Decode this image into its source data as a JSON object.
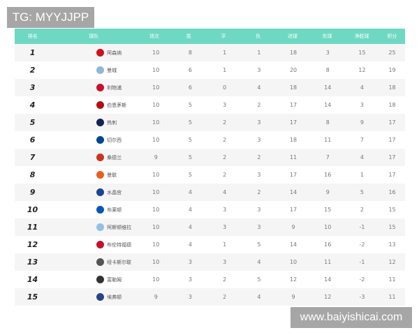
{
  "watermarks": {
    "top_left": "TG: MYYJJPP",
    "bottom_right": "www.baiyishicai.com"
  },
  "table": {
    "headers": [
      "排名",
      "球队",
      "场次",
      "胜",
      "平",
      "负",
      "进球",
      "失球",
      "净胜球",
      "积分"
    ],
    "rows": [
      {
        "rank": "1",
        "team": "阿森纳",
        "logo_color": "#d0101a",
        "played": "10",
        "won": "8",
        "drawn": "1",
        "lost": "1",
        "gf": "18",
        "ga": "3",
        "gd": "15",
        "pts": "25"
      },
      {
        "rank": "2",
        "team": "曼城",
        "logo_color": "#8fb8d8",
        "played": "10",
        "won": "6",
        "drawn": "1",
        "lost": "3",
        "gf": "20",
        "ga": "8",
        "gd": "12",
        "pts": "19"
      },
      {
        "rank": "3",
        "team": "利物浦",
        "logo_color": "#c8102e",
        "played": "10",
        "won": "6",
        "drawn": "0",
        "lost": "4",
        "gf": "18",
        "ga": "14",
        "gd": "4",
        "pts": "18"
      },
      {
        "rank": "4",
        "team": "伯恩茅斯",
        "logo_color": "#b50e12",
        "played": "10",
        "won": "5",
        "drawn": "3",
        "lost": "2",
        "gf": "17",
        "ga": "14",
        "gd": "3",
        "pts": "18"
      },
      {
        "rank": "5",
        "team": "热刺",
        "logo_color": "#132257",
        "played": "10",
        "won": "5",
        "drawn": "2",
        "lost": "3",
        "gf": "17",
        "ga": "8",
        "gd": "9",
        "pts": "17"
      },
      {
        "rank": "6",
        "team": "切尔西",
        "logo_color": "#034694",
        "played": "10",
        "won": "5",
        "drawn": "2",
        "lost": "3",
        "gf": "18",
        "ga": "11",
        "gd": "7",
        "pts": "17"
      },
      {
        "rank": "7",
        "team": "桑德兰",
        "logo_color": "#c8341f",
        "played": "9",
        "won": "5",
        "drawn": "2",
        "lost": "2",
        "gf": "11",
        "ga": "7",
        "gd": "4",
        "pts": "17"
      },
      {
        "rank": "8",
        "team": "曼联",
        "logo_color": "#e8601c",
        "played": "10",
        "won": "5",
        "drawn": "2",
        "lost": "3",
        "gf": "17",
        "ga": "16",
        "gd": "1",
        "pts": "17"
      },
      {
        "rank": "9",
        "team": "水晶宫",
        "logo_color": "#1b458f",
        "played": "10",
        "won": "4",
        "drawn": "4",
        "lost": "2",
        "gf": "14",
        "ga": "9",
        "gd": "5",
        "pts": "16"
      },
      {
        "rank": "10",
        "team": "布莱顿",
        "logo_color": "#0057b8",
        "played": "10",
        "won": "4",
        "drawn": "3",
        "lost": "3",
        "gf": "17",
        "ga": "15",
        "gd": "2",
        "pts": "15"
      },
      {
        "rank": "11",
        "team": "阿斯顿维拉",
        "logo_color": "#95bfe5",
        "played": "10",
        "won": "4",
        "drawn": "3",
        "lost": "3",
        "gf": "9",
        "ga": "10",
        "gd": "-1",
        "pts": "15"
      },
      {
        "rank": "12",
        "team": "布伦特福德",
        "logo_color": "#c8102e",
        "played": "10",
        "won": "4",
        "drawn": "1",
        "lost": "5",
        "gf": "14",
        "ga": "16",
        "gd": "-2",
        "pts": "13"
      },
      {
        "rank": "13",
        "team": "纽卡斯尔联",
        "logo_color": "#555555",
        "played": "10",
        "won": "3",
        "drawn": "3",
        "lost": "4",
        "gf": "10",
        "ga": "11",
        "gd": "-1",
        "pts": "12"
      },
      {
        "rank": "14",
        "team": "富勒姆",
        "logo_color": "#333333",
        "played": "10",
        "won": "3",
        "drawn": "2",
        "lost": "5",
        "gf": "12",
        "ga": "14",
        "gd": "-2",
        "pts": "11"
      },
      {
        "rank": "15",
        "team": "埃弗顿",
        "logo_color": "#274488",
        "played": "9",
        "won": "3",
        "drawn": "2",
        "lost": "4",
        "gf": "9",
        "ga": "12",
        "gd": "-3",
        "pts": "11"
      }
    ]
  }
}
